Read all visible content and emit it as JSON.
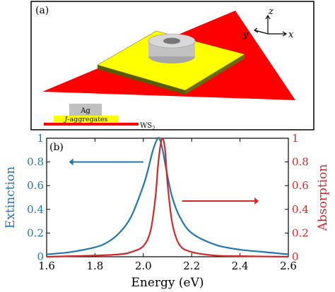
{
  "panel_a": {
    "label": "(a)",
    "axes": {
      "z": "z",
      "y": "y",
      "x": "x"
    },
    "legend": {
      "ag": "Ag",
      "j_aggregates": "J-aggregates",
      "ws2": "WS",
      "ws2_sub": "2"
    }
  },
  "panel_b": {
    "label": "(b)"
  },
  "chart_data": {
    "type": "line",
    "xlabel": "Energy (eV)",
    "ylabel_left": "Extinction",
    "ylabel_right": "Absorption",
    "xlim": [
      1.6,
      2.6
    ],
    "ylim": [
      0,
      1
    ],
    "x_ticks": [
      "1.6",
      "1.8",
      "2.0",
      "2.2",
      "2.4",
      "2.6"
    ],
    "y_ticks_left": [
      "0",
      "0.2",
      "0.4",
      "0.6",
      "0.8",
      "1"
    ],
    "y_ticks_right": [
      "0",
      "0.2",
      "0.4",
      "0.6",
      "0.8",
      "1"
    ],
    "series": [
      {
        "axis": "left",
        "color": "#1f77b4",
        "x": [
          1.6,
          1.7,
          1.8,
          1.85,
          1.9,
          1.95,
          2.0,
          2.02,
          2.04,
          2.06,
          2.07,
          2.08,
          2.1,
          2.12,
          2.15,
          2.2,
          2.3,
          2.4,
          2.5,
          2.6
        ],
        "y": [
          0.02,
          0.04,
          0.08,
          0.12,
          0.2,
          0.34,
          0.6,
          0.74,
          0.9,
          1.0,
          0.98,
          0.9,
          0.68,
          0.5,
          0.34,
          0.2,
          0.1,
          0.06,
          0.04,
          0.02
        ]
      },
      {
        "axis": "right",
        "color": "#d62728",
        "x": [
          1.6,
          1.8,
          1.9,
          1.95,
          2.0,
          2.03,
          2.05,
          2.06,
          2.07,
          2.08,
          2.09,
          2.1,
          2.12,
          2.15,
          2.2,
          2.3,
          2.4,
          2.6
        ],
        "y": [
          0.0,
          0.01,
          0.02,
          0.04,
          0.09,
          0.22,
          0.5,
          0.75,
          0.93,
          1.0,
          0.9,
          0.62,
          0.28,
          0.1,
          0.04,
          0.01,
          0.005,
          0.0
        ]
      }
    ],
    "arrows": [
      {
        "axis": "left",
        "direction": "left",
        "color": "#1f77b4",
        "x_from": 2.0,
        "x_to": 1.71,
        "y": 0.8
      },
      {
        "axis": "right",
        "direction": "right",
        "color": "#d62728",
        "x_from": 2.16,
        "x_to": 2.46,
        "y": 0.47
      }
    ]
  }
}
